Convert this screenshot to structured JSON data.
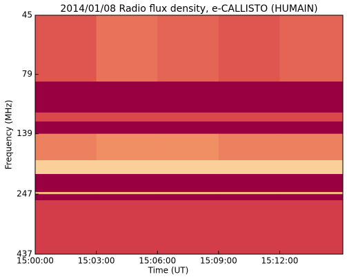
{
  "chart_data": {
    "type": "heatmap",
    "title": "2014/01/08  Radio flux density, e-CALLISTO (HUMAIN)",
    "xlabel": "Time (UT)",
    "ylabel": "Frequency (MHz)",
    "x_bins": [
      0,
      3,
      6,
      9,
      12,
      15.1
    ],
    "y_bins": [
      45,
      84.6,
      113.6,
      123.7,
      139,
      178.8,
      203.9,
      241.9,
      247,
      261.7,
      437
    ],
    "z": [
      [
        0.4,
        0.5,
        0.45,
        0.4,
        0.45
      ],
      [
        0,
        0,
        0,
        0,
        0
      ],
      [
        0.35,
        0.35,
        0.35,
        0.35,
        0.35
      ],
      [
        0,
        0,
        0,
        0,
        0
      ],
      [
        0.55,
        0.6,
        0.6,
        0.55,
        0.55
      ],
      [
        0.85,
        0.85,
        0.85,
        0.85,
        0.85
      ],
      [
        0,
        0,
        0,
        0,
        0
      ],
      [
        0.75,
        0.75,
        0.75,
        0.75,
        0.75
      ],
      [
        0,
        0,
        0,
        0,
        0
      ],
      [
        0.3,
        0.3,
        0.3,
        0.3,
        0.3
      ]
    ],
    "colormap": [
      "#990042",
      "#d9434a",
      "#f7a26a",
      "#fdf3c0"
    ],
    "xlim": [
      0,
      15.1
    ],
    "xticks": [
      {
        "value": 0,
        "label": "15:00:00"
      },
      {
        "value": 3,
        "label": "15:03:00"
      },
      {
        "value": 6,
        "label": "15:06:00"
      },
      {
        "value": 9,
        "label": "15:09:00"
      },
      {
        "value": 12,
        "label": "15:12:00"
      }
    ],
    "ylim": [
      45,
      437
    ],
    "yscale": "log",
    "yinverted": true,
    "yticks": [
      45,
      79,
      139,
      247,
      437
    ]
  }
}
